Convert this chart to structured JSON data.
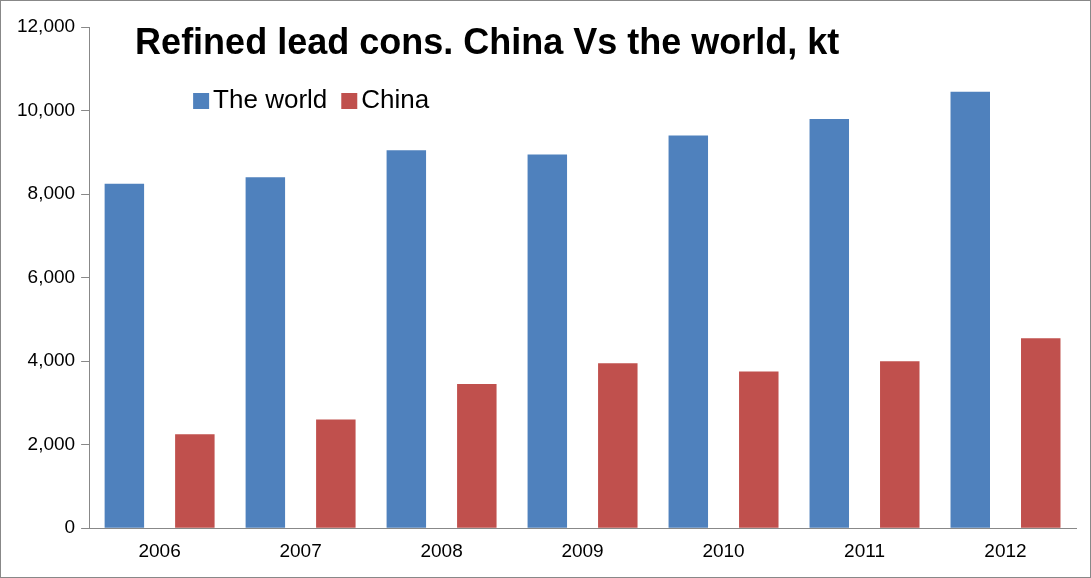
{
  "chart_data": {
    "type": "bar",
    "title": "Refined lead cons. China Vs the world, kt",
    "categories": [
      "2006",
      "2007",
      "2008",
      "2009",
      "2010",
      "2011",
      "2012"
    ],
    "series": [
      {
        "name": "The world",
        "color": "#4f81bd",
        "values": [
          8250,
          8400,
          9050,
          8950,
          9400,
          9800,
          10450
        ]
      },
      {
        "name": "China",
        "color": "#c0504d",
        "values": [
          2250,
          2600,
          3450,
          3950,
          3750,
          4000,
          4550
        ]
      }
    ],
    "ylim": [
      0,
      12000
    ],
    "yticks": [
      0,
      {
        "value": 2000,
        "label": "2,000"
      },
      {
        "value": 4000,
        "label": "4,000"
      },
      {
        "value": 6000,
        "label": "6,000"
      },
      {
        "value": 8000,
        "label": "8,000"
      },
      {
        "value": 10000,
        "label": "10,000"
      },
      {
        "value": 12000,
        "label": "12,000"
      }
    ],
    "grid": false,
    "legend": "top left"
  }
}
